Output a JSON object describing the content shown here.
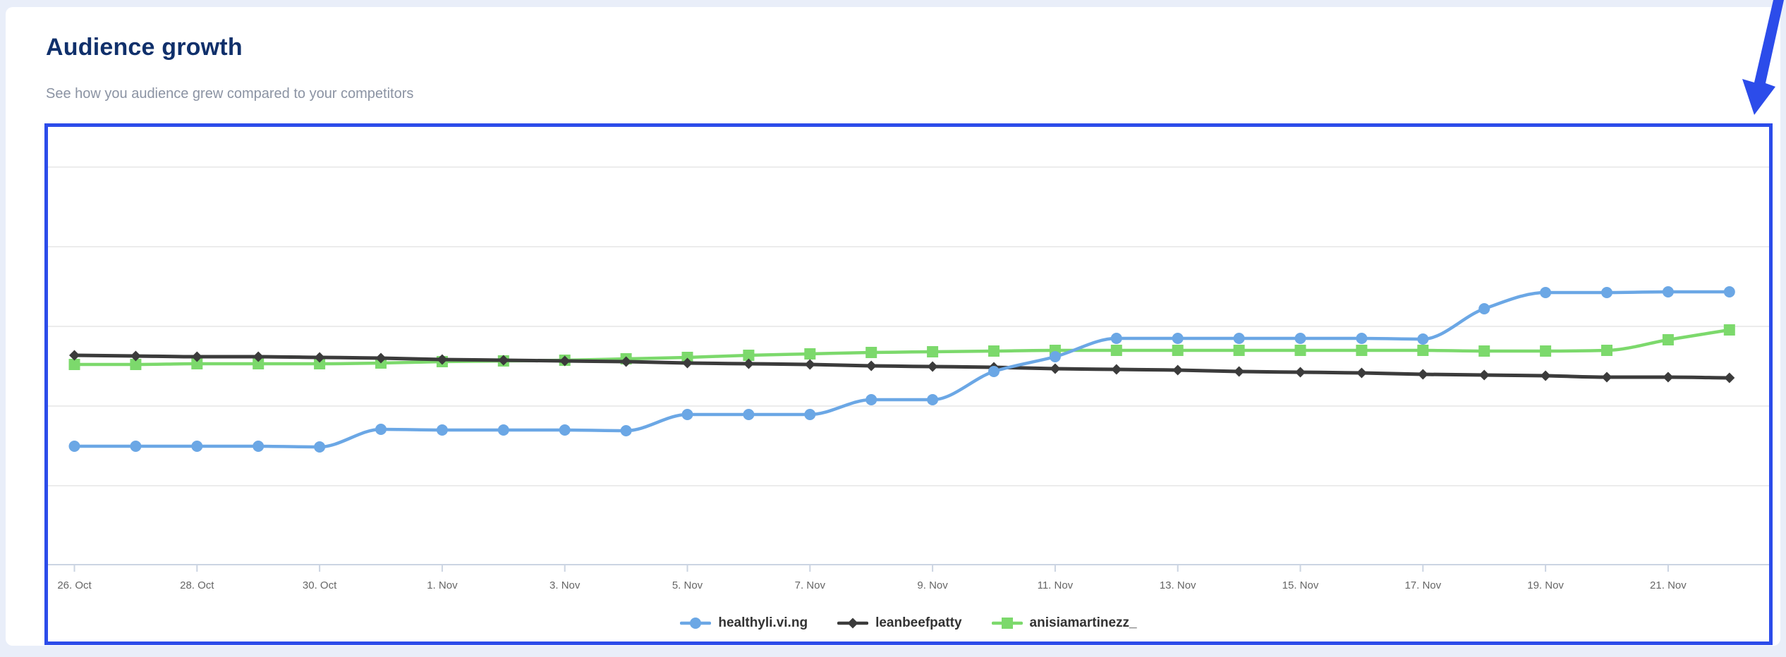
{
  "header": {
    "title": "Audience growth",
    "subtitle": "See how you audience grew compared to your competitors"
  },
  "colors": {
    "page_background": "#e9eef9",
    "card_background": "#ffffff",
    "title_text": "#10306b",
    "subtitle_text": "#8b93a3",
    "annotation_blue": "#2c4cea",
    "gridline": "#ececec",
    "axis_line": "#cbd4e2",
    "axis_label_text": "#666666",
    "legend_text": "#333333"
  },
  "chart_data": {
    "type": "line",
    "title": "",
    "xlabel": "",
    "ylabel": "",
    "y_axis_labels": "hidden",
    "grid": "horizontal",
    "legend_position": "bottom",
    "x_tick_every": 2,
    "x_tick_labels_visible": [
      "26. Oct",
      "28. Oct",
      "30. Oct",
      "1. Nov",
      "3. Nov",
      "5. Nov",
      "7. Nov",
      "9. Nov",
      "11. Nov",
      "13. Nov",
      "15. Nov",
      "17. Nov",
      "19. Nov",
      "21. Nov"
    ],
    "x": [
      "26. Oct",
      "27. Oct",
      "28. Oct",
      "29. Oct",
      "30. Oct",
      "31. Oct",
      "1. Nov",
      "2. Nov",
      "3. Nov",
      "4. Nov",
      "5. Nov",
      "6. Nov",
      "7. Nov",
      "8. Nov",
      "9. Nov",
      "10. Nov",
      "11. Nov",
      "12. Nov",
      "13. Nov",
      "14. Nov",
      "15. Nov",
      "16. Nov",
      "17. Nov",
      "18. Nov",
      "19. Nov",
      "20. Nov",
      "21. Nov",
      "22. Nov"
    ],
    "value_units": "relative level (y axis unlabeled), estimated from pixel positions",
    "ylim": [
      0,
      620
    ],
    "series": [
      {
        "name": "healthyli.vi.ng",
        "color": "#6ba7e5",
        "marker": "circle",
        "line_width": 4.5,
        "values": [
          168,
          168,
          168,
          168,
          167,
          192,
          191,
          191,
          191,
          190,
          213,
          213,
          213,
          234,
          234,
          274,
          295,
          321,
          321,
          321,
          321,
          321,
          320,
          363,
          386,
          386,
          387,
          387
        ]
      },
      {
        "name": "leanbeefpatty",
        "color": "#3b3b3b",
        "marker": "diamond",
        "line_width": 5,
        "values": [
          297,
          296,
          295,
          295,
          294,
          293,
          291,
          290,
          289,
          288,
          286,
          285,
          284,
          282,
          281,
          280,
          278,
          277,
          276,
          274,
          273,
          272,
          270,
          269,
          268,
          266,
          266,
          265
        ]
      },
      {
        "name": "anisiamartinezz_",
        "color": "#7cd96c",
        "marker": "square",
        "line_width": 4.5,
        "values": [
          284,
          284,
          285,
          285,
          285,
          286,
          288,
          289,
          290,
          292,
          294,
          297,
          299,
          301,
          302,
          303,
          304,
          304,
          304,
          304,
          304,
          304,
          304,
          303,
          303,
          304,
          319,
          333
        ]
      }
    ]
  },
  "annotation": {
    "description": "hand-drawn style arrow pointing down at the highlighted chart area",
    "color": "#2c4cea"
  }
}
